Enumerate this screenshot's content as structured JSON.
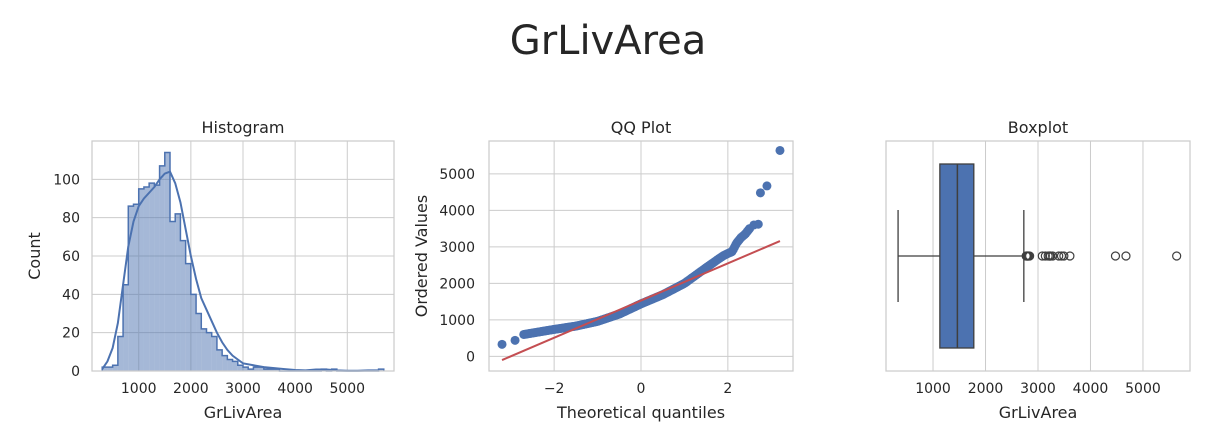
{
  "figure": {
    "title": "GrLivArea"
  },
  "chart_data": [
    {
      "type": "histogram",
      "title": "Histogram",
      "xlabel": "GrLivArea",
      "ylabel": "Count",
      "xlim": [
        104,
        5896
      ],
      "ylim": [
        0,
        120
      ],
      "xticks": [
        1000,
        2000,
        3000,
        4000,
        5000
      ],
      "yticks": [
        0,
        20,
        40,
        60,
        80,
        100
      ],
      "grid": true,
      "color": "#4c72b0",
      "bin_edges": [
        300,
        400,
        500,
        600,
        700,
        800,
        900,
        1000,
        1100,
        1200,
        1300,
        1400,
        1500,
        1600,
        1700,
        1800,
        1900,
        2000,
        2100,
        2200,
        2300,
        2400,
        2500,
        2600,
        2700,
        2800,
        2900,
        3000,
        3100,
        3200,
        3300,
        3400,
        3500,
        3600,
        3700,
        3800,
        3900,
        4000,
        4100,
        4200,
        4300,
        4400,
        4500,
        4600,
        4700,
        4800,
        4900,
        5000,
        5100,
        5200,
        5300,
        5400,
        5500,
        5600,
        5700
      ],
      "counts": [
        2,
        2,
        3,
        18,
        45,
        86,
        87,
        95,
        96,
        98,
        97,
        107,
        114,
        78,
        82,
        68,
        56,
        40,
        30,
        22,
        20,
        18,
        11,
        8,
        6,
        5,
        3,
        2,
        1,
        2,
        2,
        1,
        1,
        1,
        0,
        0,
        0,
        0,
        0,
        0,
        0,
        0,
        1,
        0,
        1,
        0,
        0,
        0,
        0,
        0,
        0,
        0,
        0,
        1
      ],
      "kde": {
        "x": [
          300,
          400,
          500,
          600,
          700,
          800,
          900,
          1000,
          1100,
          1200,
          1300,
          1400,
          1500,
          1600,
          1700,
          1800,
          1900,
          2000,
          2100,
          2200,
          2300,
          2400,
          2500,
          2600,
          2700,
          2800,
          2900,
          3000,
          3200,
          3400,
          3600,
          3800,
          4000,
          4200,
          4400,
          4600,
          4800,
          5000,
          5200,
          5400,
          5600
        ],
        "y": [
          1,
          5,
          12,
          25,
          45,
          65,
          78,
          86,
          90,
          93,
          96,
          100,
          103,
          104,
          98,
          88,
          74,
          60,
          48,
          38,
          32,
          26,
          20,
          15,
          11,
          8,
          6,
          4,
          3,
          2,
          1.5,
          1,
          0.5,
          0.3,
          0.8,
          0.8,
          0.3,
          0.1,
          0.1,
          0.3,
          0.3
        ]
      }
    },
    {
      "type": "scatter",
      "title": "QQ Plot",
      "xlabel": "Theoretical quantiles",
      "ylabel": "Ordered Values",
      "xlim": [
        -3.5,
        3.5
      ],
      "ylim": [
        -400,
        5900
      ],
      "xticks": [
        -2,
        0,
        2
      ],
      "yticks": [
        0,
        1000,
        2000,
        3000,
        4000,
        5000
      ],
      "grid": true,
      "color": "#4c72b0",
      "fit_line": {
        "x": [
          -3.2,
          3.2
        ],
        "y": [
          -100,
          3160
        ],
        "color": "#c44e52"
      },
      "anchors": {
        "x": [
          -3.2,
          -2.9,
          -2.7,
          -2.5,
          -2.2,
          -2.0,
          -1.5,
          -1.0,
          -0.5,
          0,
          0.5,
          1.0,
          1.5,
          1.8,
          1.9,
          2.0,
          2.1,
          2.2,
          2.3,
          2.4,
          2.5,
          2.6,
          2.7,
          2.8,
          2.9,
          3.2
        ],
        "y": [
          330,
          440,
          600,
          640,
          700,
          740,
          830,
          960,
          1160,
          1440,
          1690,
          2000,
          2430,
          2680,
          2760,
          2820,
          2870,
          3100,
          3250,
          3350,
          3500,
          3600,
          3620,
          4480,
          4670,
          5640
        ]
      }
    },
    {
      "type": "box",
      "title": "Boxplot",
      "xlabel": "GrLivArea",
      "xlim": [
        104,
        5896
      ],
      "xticks": [
        1000,
        2000,
        3000,
        4000,
        5000
      ],
      "grid": true,
      "color": "#4c72b0",
      "whisker_low": 334,
      "q1": 1130,
      "median": 1464,
      "q3": 1777,
      "whisker_high": 2730,
      "outliers": [
        2775,
        2790,
        2800,
        2810,
        2820,
        2840,
        3082,
        3140,
        3194,
        3222,
        3228,
        3238,
        3279,
        3395,
        3447,
        3493,
        3608,
        4476,
        4676,
        5642
      ]
    }
  ]
}
